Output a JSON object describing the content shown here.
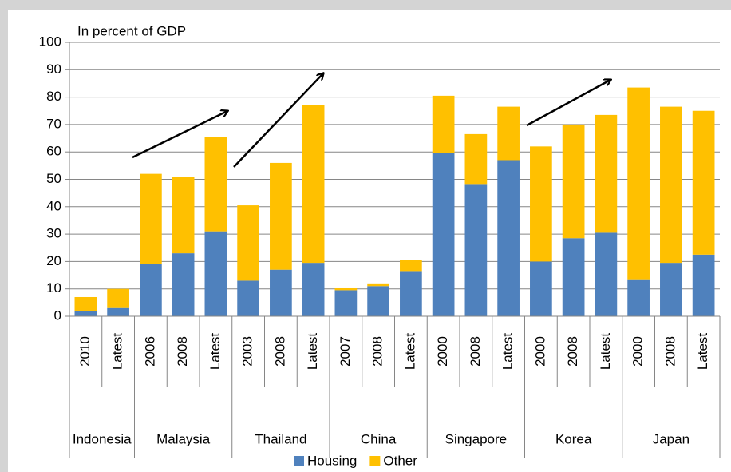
{
  "chart_data": {
    "type": "stacked_bar",
    "ylabel": "In percent of GDP",
    "groups": [
      {
        "name": "Indonesia",
        "categories": [
          "2010",
          "Latest"
        ]
      },
      {
        "name": "Malaysia",
        "categories": [
          "2006",
          "2008",
          "Latest"
        ]
      },
      {
        "name": "Thailand",
        "categories": [
          "2003",
          "2008",
          "Latest"
        ]
      },
      {
        "name": "China",
        "categories": [
          "2007",
          "2008",
          "Latest"
        ]
      },
      {
        "name": "Singapore",
        "categories": [
          "2000",
          "2008",
          "Latest"
        ]
      },
      {
        "name": "Korea",
        "categories": [
          "2000",
          "2008",
          "Latest"
        ]
      },
      {
        "name": "Japan",
        "categories": [
          "2000",
          "2008",
          "Latest"
        ]
      }
    ],
    "series": [
      {
        "name": "Housing",
        "color": "#4f81bd",
        "values": [
          2,
          3,
          19,
          23,
          31,
          13,
          17,
          19.5,
          9.5,
          11,
          16.5,
          59.5,
          48,
          57,
          20,
          28.5,
          30.5,
          13.5,
          19.5,
          22.5
        ]
      },
      {
        "name": "Other",
        "color": "#ffc000",
        "values": [
          5,
          7,
          33,
          28,
          34.5,
          27.5,
          39,
          57.5,
          1,
          1,
          4,
          21,
          18.5,
          19.5,
          42,
          41.5,
          43,
          70,
          57,
          52.5
        ]
      }
    ],
    "ylim": [
      0,
      100
    ],
    "yticks": [
      0,
      10,
      20,
      30,
      40,
      50,
      60,
      70,
      80,
      90,
      100
    ],
    "grid": true
  }
}
